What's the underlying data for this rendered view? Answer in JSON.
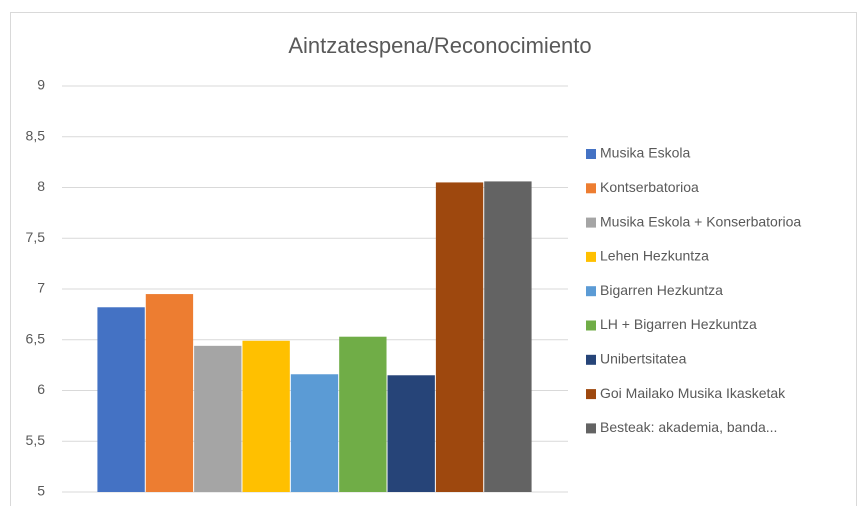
{
  "chart_data": {
    "type": "bar",
    "title": "Aintzatespena/Reconocimiento",
    "categories": [
      null
    ],
    "series": [
      {
        "name": "Musika Eskola",
        "color": "#4472c4",
        "values": [
          6.82
        ]
      },
      {
        "name": "Kontserbatorioa",
        "color": "#ed7d31",
        "values": [
          6.95
        ]
      },
      {
        "name": "Musika Eskola + Konserbatorioa",
        "color": "#a5a5a5",
        "values": [
          6.44
        ]
      },
      {
        "name": "Lehen Hezkuntza",
        "color": "#ffc000",
        "values": [
          6.49
        ]
      },
      {
        "name": "Bigarren Hezkuntza",
        "color": "#5b9bd5",
        "values": [
          6.16
        ]
      },
      {
        "name": "LH + Bigarren Hezkuntza",
        "color": "#70ad47",
        "values": [
          6.53
        ]
      },
      {
        "name": "Unibertsitatea",
        "color": "#264478",
        "values": [
          6.15
        ]
      },
      {
        "name": "Goi Mailako Musika Ikasketak",
        "color": "#9e480e",
        "values": [
          8.05
        ]
      },
      {
        "name": "Besteak: akademia, banda...",
        "color": "#636363",
        "values": [
          8.06
        ]
      }
    ],
    "ylim": [
      5,
      9
    ],
    "yticks": [
      5,
      {
        "value": 5.5,
        "label": "5,5"
      },
      6,
      {
        "value": 6.5,
        "label": "6,5"
      },
      7,
      {
        "value": 7.5,
        "label": "7,5"
      },
      8,
      {
        "value": 8.5,
        "label": "8,5"
      },
      9
    ],
    "grid": true,
    "legend": "right"
  }
}
